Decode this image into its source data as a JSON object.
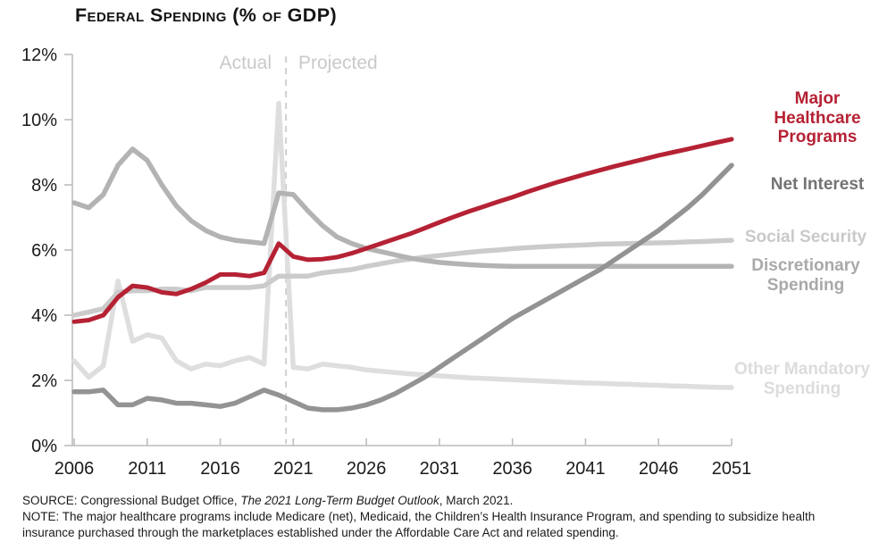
{
  "title": "Federal Spending (% of GDP)",
  "divider": {
    "label_left": "Actual",
    "label_right": "Projected"
  },
  "chart_data": {
    "type": "line",
    "title": "Federal Spending (% of GDP)",
    "xlabel": "",
    "ylabel": "",
    "grid": false,
    "legend_position": "right",
    "x_range": [
      2006,
      2051
    ],
    "y_range": [
      0,
      12
    ],
    "x_ticks": [
      2006,
      2011,
      2016,
      2021,
      2026,
      2031,
      2036,
      2041,
      2046,
      2051
    ],
    "y_ticks": [
      0,
      2,
      4,
      6,
      8,
      10,
      12
    ],
    "y_tick_suffix": "%",
    "divider_year": 2020.5,
    "years": [
      2006,
      2007,
      2008,
      2009,
      2010,
      2011,
      2012,
      2013,
      2014,
      2015,
      2016,
      2017,
      2018,
      2019,
      2020,
      2021,
      2022,
      2023,
      2024,
      2025,
      2026,
      2027,
      2028,
      2029,
      2030,
      2031,
      2032,
      2033,
      2034,
      2035,
      2036,
      2037,
      2038,
      2039,
      2040,
      2041,
      2042,
      2043,
      2044,
      2045,
      2046,
      2047,
      2048,
      2049,
      2050,
      2051
    ],
    "series": [
      {
        "id": "other-mandatory-spending",
        "name": "Other Mandatory Spending",
        "label": "Other Mandatory\nSpending",
        "color": "#dedede",
        "label_color": "#dcdcdc",
        "values": [
          2.6,
          2.1,
          2.45,
          5.05,
          3.2,
          3.4,
          3.3,
          2.6,
          2.35,
          2.5,
          2.45,
          2.6,
          2.7,
          2.5,
          10.5,
          2.4,
          2.35,
          2.5,
          2.45,
          2.4,
          2.32,
          2.28,
          2.24,
          2.2,
          2.17,
          2.14,
          2.11,
          2.08,
          2.06,
          2.04,
          2.02,
          2.0,
          1.98,
          1.96,
          1.94,
          1.92,
          1.91,
          1.89,
          1.88,
          1.86,
          1.85,
          1.83,
          1.82,
          1.8,
          1.79,
          1.78
        ]
      },
      {
        "id": "social-security",
        "name": "Social Security",
        "label": "Social Security",
        "color": "#cbcbcb",
        "label_color": "#c9c9c9",
        "values": [
          4.0,
          4.1,
          4.2,
          4.7,
          4.75,
          4.75,
          4.8,
          4.8,
          4.75,
          4.85,
          4.85,
          4.85,
          4.85,
          4.9,
          5.2,
          5.2,
          5.2,
          5.3,
          5.35,
          5.4,
          5.5,
          5.58,
          5.66,
          5.72,
          5.78,
          5.83,
          5.88,
          5.93,
          5.97,
          6.0,
          6.04,
          6.07,
          6.1,
          6.12,
          6.14,
          6.16,
          6.18,
          6.19,
          6.2,
          6.21,
          6.22,
          6.23,
          6.25,
          6.26,
          6.28,
          6.3
        ]
      },
      {
        "id": "discretionary-spending",
        "name": "Discretionary Spending",
        "label": "Discretionary\nSpending",
        "color": "#b3b3b3",
        "label_color": "#a9a9a9",
        "values": [
          7.45,
          7.3,
          7.7,
          8.6,
          9.1,
          8.75,
          8.0,
          7.35,
          6.9,
          6.6,
          6.4,
          6.3,
          6.25,
          6.2,
          7.75,
          7.7,
          7.2,
          6.75,
          6.4,
          6.2,
          6.05,
          5.95,
          5.85,
          5.75,
          5.68,
          5.62,
          5.58,
          5.55,
          5.53,
          5.51,
          5.5,
          5.5,
          5.5,
          5.5,
          5.5,
          5.5,
          5.5,
          5.5,
          5.5,
          5.5,
          5.5,
          5.5,
          5.5,
          5.5,
          5.5,
          5.5
        ]
      },
      {
        "id": "net-interest",
        "name": "Net Interest",
        "label": "Net Interest",
        "color": "#939393",
        "label_color": "#737373",
        "values": [
          1.65,
          1.65,
          1.7,
          1.25,
          1.25,
          1.45,
          1.4,
          1.3,
          1.3,
          1.25,
          1.2,
          1.3,
          1.5,
          1.7,
          1.55,
          1.35,
          1.15,
          1.1,
          1.1,
          1.15,
          1.25,
          1.4,
          1.6,
          1.85,
          2.1,
          2.4,
          2.7,
          3.0,
          3.3,
          3.6,
          3.9,
          4.15,
          4.4,
          4.65,
          4.9,
          5.15,
          5.4,
          5.7,
          6.0,
          6.3,
          6.6,
          6.95,
          7.3,
          7.7,
          8.15,
          8.6
        ]
      },
      {
        "id": "major-healthcare-programs",
        "name": "Major Healthcare Programs",
        "label": "Major\nHealthcare\nPrograms",
        "color": "#b52234",
        "label_color": "#b52234",
        "values": [
          3.8,
          3.85,
          4.0,
          4.55,
          4.9,
          4.85,
          4.7,
          4.65,
          4.8,
          5.0,
          5.25,
          5.25,
          5.2,
          5.3,
          6.2,
          5.8,
          5.7,
          5.72,
          5.78,
          5.9,
          6.05,
          6.2,
          6.35,
          6.5,
          6.67,
          6.85,
          7.02,
          7.18,
          7.33,
          7.48,
          7.62,
          7.78,
          7.93,
          8.07,
          8.2,
          8.33,
          8.45,
          8.57,
          8.68,
          8.79,
          8.9,
          9.0,
          9.1,
          9.2,
          9.3,
          9.4
        ]
      }
    ],
    "colors": {
      "accent_red": "#b52234",
      "axis_gray": "#bcbcbc",
      "divider_gray": "#cfcfcf",
      "stage_label_gray": "#c9c9c9"
    }
  },
  "footer": {
    "source_prefix": "SOURCE: Congressional Budget Office, ",
    "source_italic": "The 2021 Long-Term Budget Outlook",
    "source_suffix": ", March 2021.",
    "note": "NOTE: The major healthcare programs include Medicare (net), Medicaid, the Children’s Health Insurance Program, and spending to subsidize health insurance purchased through the marketplaces established under the Affordable Care Act and related spending."
  }
}
